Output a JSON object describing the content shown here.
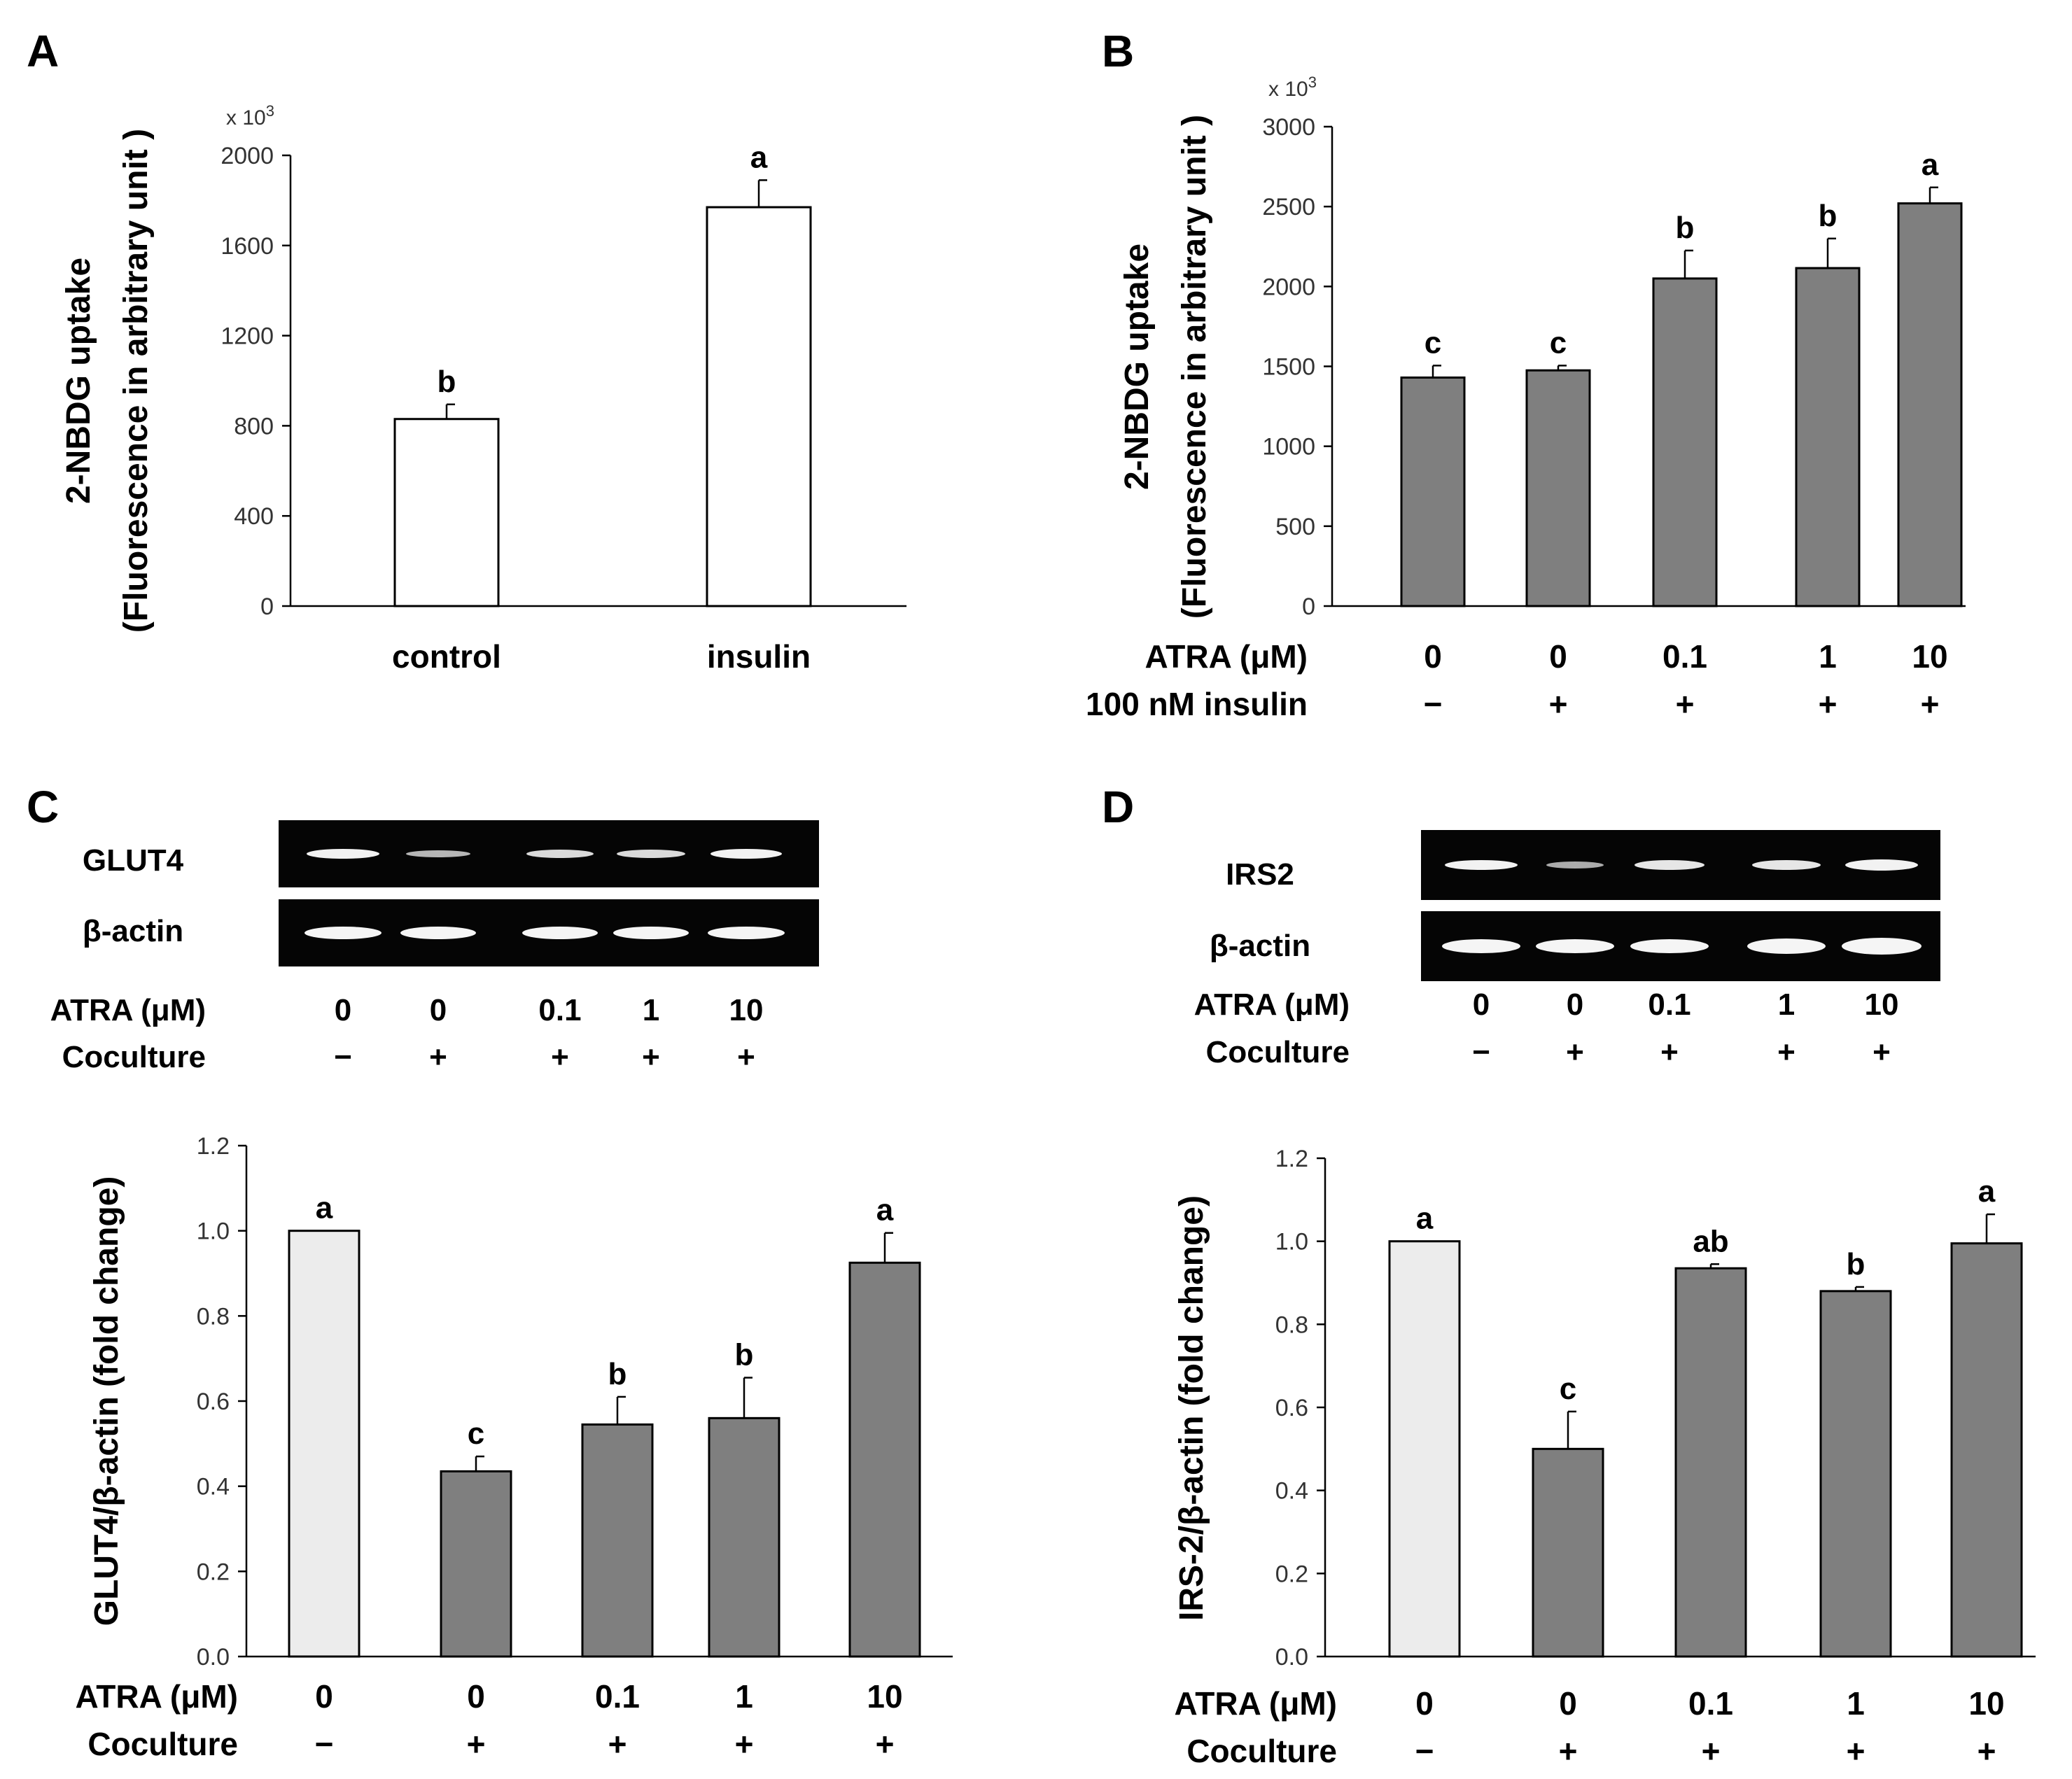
{
  "panels": {
    "A": "A",
    "B": "B",
    "C": "C",
    "D": "D"
  },
  "chart_data": [
    {
      "id": "A",
      "type": "bar",
      "categories": [
        "control",
        "insulin"
      ],
      "values": [
        830,
        1770
      ],
      "errors": [
        65,
        120
      ],
      "letters": [
        "b",
        "a"
      ],
      "bar_color": "#ffffff",
      "ylim": [
        0,
        2000
      ],
      "yticks": [
        "0",
        "400",
        "800",
        "1200",
        "1600",
        "2000"
      ],
      "scale_label": "x 10",
      "scale_exp": "3",
      "ylabel_line1": "2-NBDG uptake",
      "ylabel_line2": "(Fluorescence  in arbitrary  unit )"
    },
    {
      "id": "B",
      "type": "bar",
      "categories": [
        "0",
        "0",
        "0.1",
        "1",
        "10"
      ],
      "values": [
        1430,
        1475,
        2050,
        2115,
        2520
      ],
      "errors": [
        75,
        30,
        175,
        185,
        100
      ],
      "letters": [
        "c",
        "c",
        "b",
        "b",
        "a"
      ],
      "bar_color": "#7f7f7f",
      "ylim": [
        0,
        3000
      ],
      "yticks": [
        "0",
        "500",
        "1000",
        "1500",
        "2000",
        "2500",
        "3000"
      ],
      "scale_label": "x 10",
      "scale_exp": "3",
      "ylabel_line1": "2-NBDG uptake",
      "ylabel_line2": "(Fluorescence  in arbitrary unit )",
      "row1_label": "ATRA (μM)",
      "row2_label": "100 nM insulin",
      "row2_values": [
        "−",
        "+",
        "+",
        "+",
        "+"
      ]
    },
    {
      "id": "C",
      "type": "bar",
      "categories": [
        "0",
        "0",
        "0.1",
        "1",
        "10"
      ],
      "values": [
        1.0,
        0.435,
        0.545,
        0.56,
        0.925
      ],
      "errors": [
        0.0,
        0.035,
        0.065,
        0.095,
        0.07
      ],
      "letters": [
        "a",
        "c",
        "b",
        "b",
        "a"
      ],
      "bar_colors": [
        "#ececec",
        "#7f7f7f",
        "#7f7f7f",
        "#7f7f7f",
        "#7f7f7f"
      ],
      "ylim": [
        0,
        1.2
      ],
      "yticks": [
        "0.0",
        "0.2",
        "0.4",
        "0.6",
        "0.8",
        "1.0",
        "1.2"
      ],
      "ylabel": "GLUT4/β-actin (fold change)",
      "row1_label": "ATRA (μM)",
      "row2_label": "Coculture",
      "row2_values": [
        "−",
        "+",
        "+",
        "+",
        "+"
      ],
      "gel": {
        "target": "GLUT4",
        "control": "β-actin",
        "atra_label": "ATRA (μM)",
        "atra_values": [
          "0",
          "0",
          "0.1",
          "1",
          "10"
        ],
        "coculture_label": "Coculture",
        "coculture_values": [
          "−",
          "+",
          "+",
          "+",
          "+"
        ]
      }
    },
    {
      "id": "D",
      "type": "bar",
      "categories": [
        "0",
        "0",
        "0.1",
        "1",
        "10"
      ],
      "values": [
        1.0,
        0.5,
        0.935,
        0.88,
        0.995
      ],
      "errors": [
        0.0,
        0.09,
        0.01,
        0.01,
        0.07
      ],
      "letters": [
        "a",
        "c",
        "ab",
        "b",
        "a"
      ],
      "bar_colors": [
        "#ececec",
        "#7f7f7f",
        "#7f7f7f",
        "#7f7f7f",
        "#7f7f7f"
      ],
      "ylim": [
        0,
        1.2
      ],
      "yticks": [
        "0.0",
        "0.2",
        "0.4",
        "0.6",
        "0.8",
        "1.0",
        "1.2"
      ],
      "ylabel": "IRS-2/β-actin (fold change)",
      "row1_label": "ATRA (μM)",
      "row2_label": "Coculture",
      "row2_values": [
        "−",
        "+",
        "+",
        "+",
        "+"
      ],
      "gel": {
        "target": "IRS2",
        "control": "β-actin",
        "atra_label": "ATRA (μM)",
        "atra_values": [
          "0",
          "0",
          "0.1",
          "1",
          "10"
        ],
        "coculture_label": "Coculture",
        "coculture_values": [
          "−",
          "+",
          "+",
          "+",
          "+"
        ]
      }
    }
  ]
}
